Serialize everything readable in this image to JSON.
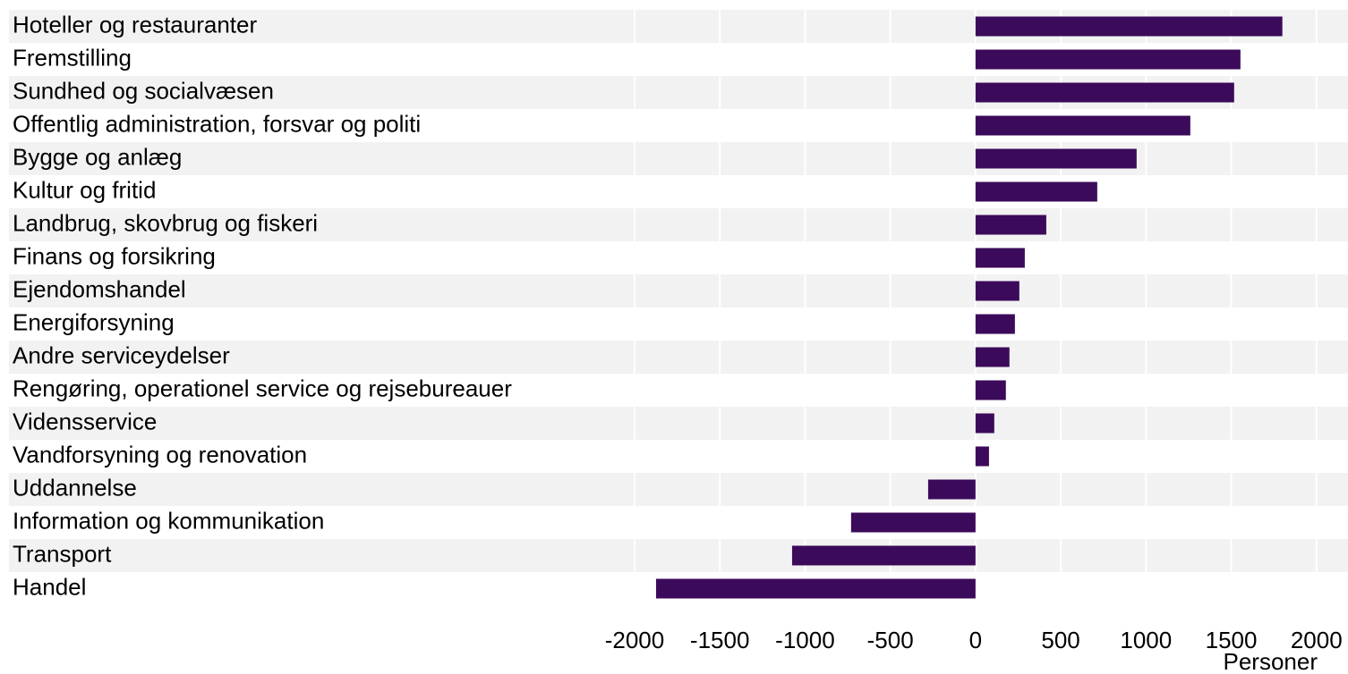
{
  "chart_data": {
    "type": "barh",
    "xlabel": "Personer",
    "categories": [
      "Hoteller og restauranter",
      "Fremstilling",
      "Sundhed og socialvæsen",
      "Offentlig administration, forsvar og politi",
      "Bygge og anlæg",
      "Kultur og fritid",
      "Landbrug, skovbrug og fiskeri",
      "Finans og forsikring",
      "Ejendomshandel",
      "Energiforsyning",
      "Andre serviceydelser",
      "Rengøring, operationel service og rejsebureauer",
      "Vidensservice",
      "Vandforsyning og renovation",
      "Uddannelse",
      "Information og kommunikation",
      "Transport",
      "Handel"
    ],
    "values": [
      1800,
      1554,
      1517,
      1260,
      945,
      714,
      415,
      289,
      257,
      231,
      199,
      178,
      110,
      79,
      -278,
      -730,
      -1076,
      -1874
    ],
    "color": "#3b0a5a",
    "xlim": [
      -5670,
      2185
    ],
    "xticks": [
      -2000,
      -1500,
      -1000,
      -500,
      0,
      500,
      1000,
      1500,
      2000
    ],
    "grid": true
  }
}
